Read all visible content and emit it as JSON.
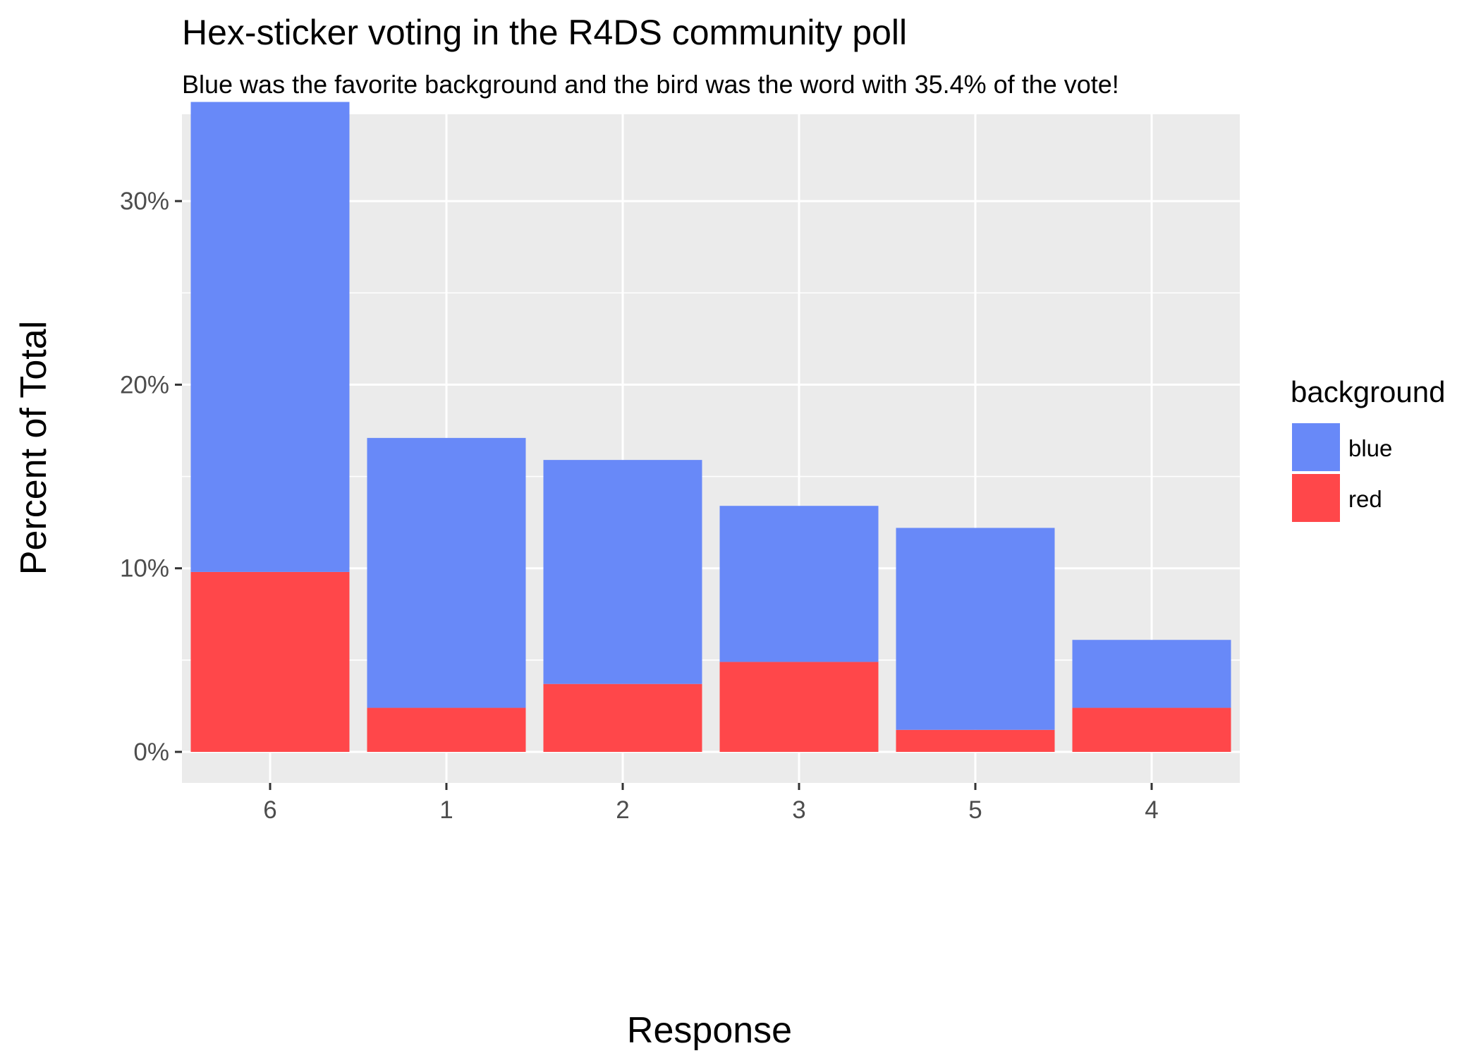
{
  "chart_data": {
    "type": "bar",
    "stacked": true,
    "title": "Hex-sticker voting in the R4DS community poll",
    "subtitle": "Blue was the favorite background and the bird was the word with 35.4% of the vote!",
    "xlabel": "Response",
    "ylabel": "Percent of Total",
    "categories": [
      "6",
      "1",
      "2",
      "3",
      "5",
      "4"
    ],
    "series": [
      {
        "name": "red",
        "color": "#ff474a",
        "values": [
          9.8,
          2.4,
          3.7,
          4.9,
          1.2,
          2.4
        ]
      },
      {
        "name": "blue",
        "color": "#6889f8",
        "values": [
          25.6,
          14.7,
          12.2,
          8.5,
          11.0,
          3.7
        ]
      }
    ],
    "ylim": [
      0,
      37.2
    ],
    "yticks": [
      0,
      10,
      20,
      30
    ],
    "ytick_labels": [
      "0%",
      "10%",
      "20%",
      "30%"
    ],
    "legend": {
      "title": "background",
      "position": "right",
      "entries": [
        {
          "label": "blue",
          "color": "#6889f8"
        },
        {
          "label": "red",
          "color": "#ff474a"
        }
      ]
    },
    "grid": true,
    "panel_background": "#ebebeb",
    "gridline_color": "#ffffff"
  }
}
